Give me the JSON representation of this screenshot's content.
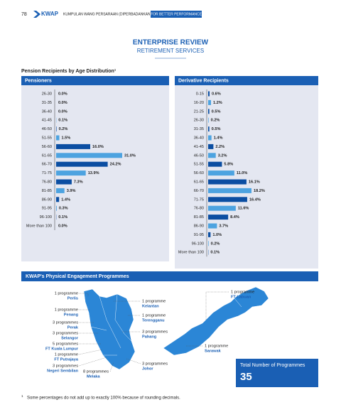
{
  "header": {
    "page_number": "78",
    "logo": "KWAP",
    "organisation": "KUMPULAN WANG PERSARAAN (DIPERBADANKAN)",
    "tagline": "FOR BETTER PERFORMANCE"
  },
  "title": "ENTERPRISE REVIEW",
  "subtitle": "RETIREMENT SERVICES",
  "section_title": "Pension Recipients by Age Distribution¹",
  "chart_data": [
    {
      "type": "bar",
      "orientation": "horizontal",
      "title": "Pensioners",
      "categories": [
        "26-30",
        "31-35",
        "36-40",
        "41-45",
        "46-50",
        "51-55",
        "56-60",
        "61-65",
        "66-70",
        "71-75",
        "76-80",
        "81-85",
        "86-90",
        "91-95",
        "96-100",
        "More than 100"
      ],
      "values": [
        0.0,
        0.0,
        0.0,
        0.1,
        0.2,
        1.5,
        16.0,
        31.0,
        24.2,
        13.9,
        7.3,
        3.9,
        1.4,
        0.3,
        0.1,
        0.0
      ],
      "value_labels": [
        "0.0%",
        "0.0%",
        "0.0%",
        "0.1%",
        "0.2%",
        "1.5%",
        "16.0%",
        "31.0%",
        "24.2%",
        "13.9%",
        "7.3%",
        "3.9%",
        "1.4%",
        "0.3%",
        "0.1%",
        "0.0%"
      ],
      "colors": [
        "#0b4ea2",
        "#4da3e0"
      ]
    },
    {
      "type": "bar",
      "orientation": "horizontal",
      "title": "Derivative Recipients",
      "categories": [
        "0-15",
        "16-20",
        "21-25",
        "26-30",
        "31-35",
        "36-40",
        "41-45",
        "46-50",
        "51-55",
        "56-60",
        "61-65",
        "66-70",
        "71-75",
        "76-80",
        "81-85",
        "86-90",
        "91-95",
        "96-100",
        "More than 100"
      ],
      "values": [
        0.6,
        1.2,
        0.5,
        0.2,
        0.5,
        1.4,
        2.2,
        3.2,
        5.8,
        11.0,
        16.1,
        18.2,
        16.4,
        11.6,
        8.4,
        3.7,
        1.0,
        0.2,
        0.1
      ],
      "value_labels": [
        "0.6%",
        "1.2%",
        "0.5%",
        "0.2%",
        "0.5%",
        "1.4%",
        "2.2%",
        "3.2%",
        "5.8%",
        "11.0%",
        "16.1%",
        "18.2%",
        "16.4%",
        "11.6%",
        "8.4%",
        "3.7%",
        "1.0%",
        "0.2%",
        "0.1%"
      ],
      "colors": [
        "#0b4ea2",
        "#4da3e0"
      ]
    }
  ],
  "engagement": {
    "title": "KWAP's Physical Engagement Programmes",
    "items": [
      {
        "count": "1 programme",
        "state": "Perlis"
      },
      {
        "count": "1 programme",
        "state": "Penang"
      },
      {
        "count": "3 programmes",
        "state": "Perak"
      },
      {
        "count": "3 programmes",
        "state": "Selangor"
      },
      {
        "count": "5 programmes",
        "state": "FT Kuala Lumpur"
      },
      {
        "count": "1 programme",
        "state": "FT Putrajaya"
      },
      {
        "count": "3 programmes",
        "state": "Negeri Sembilan"
      },
      {
        "count": "8 programmes",
        "state": "Melaka"
      },
      {
        "count": "1 programme",
        "state": "Kelantan"
      },
      {
        "count": "1 programme",
        "state": "Terengganu"
      },
      {
        "count": "3 programmes",
        "state": "Pahang"
      },
      {
        "count": "3 programmes",
        "state": "Johor"
      },
      {
        "count": "1 programme",
        "state": "FT Labuan"
      },
      {
        "count": "1 programme",
        "state": "Sarawak"
      }
    ],
    "total_label": "Total Number of Programmes",
    "total": "35"
  },
  "footnote": {
    "marker": "1",
    "text": "Some percentages do not add up to exactly 100% because of rounding decimals."
  }
}
